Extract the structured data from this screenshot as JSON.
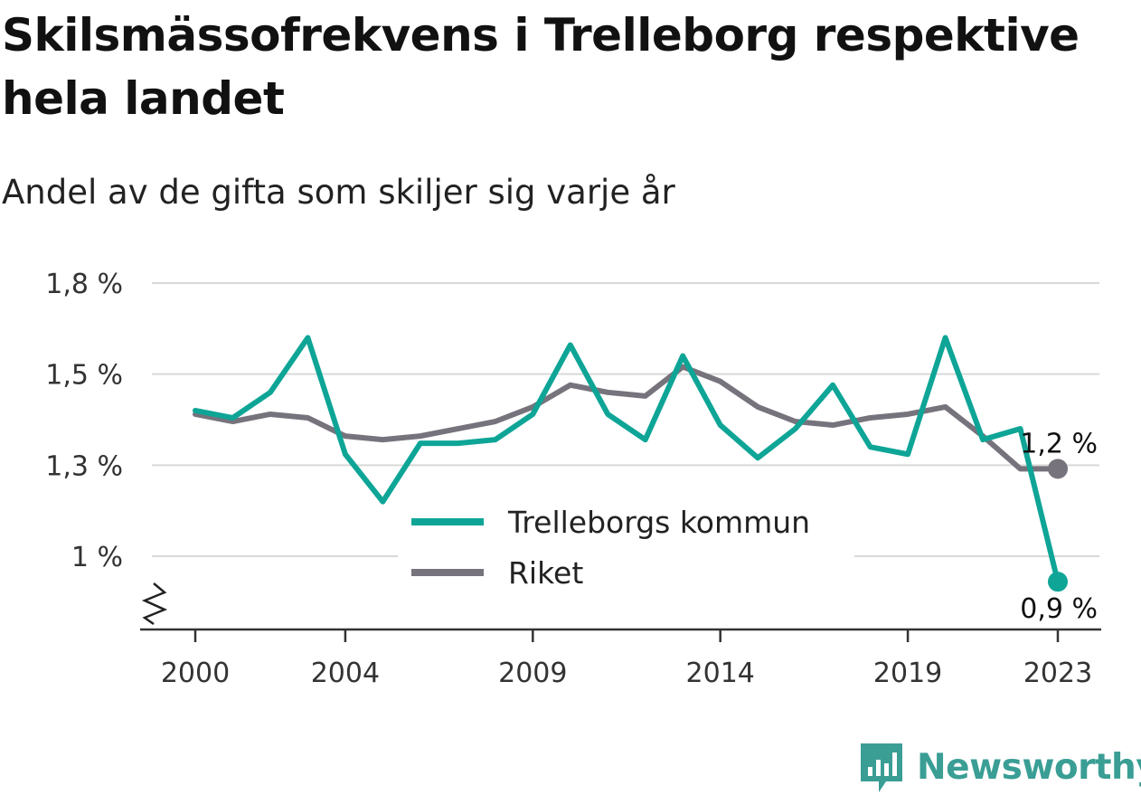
{
  "title": "Skilsmässofrekvens i Trelleborg respektive hela landet",
  "subtitle": "Andel av de gifta som skiljer sig varje år",
  "brand": {
    "name": "Newsworthy",
    "icon": "newsworthy-logo-icon"
  },
  "colors": {
    "trelleborg": "#0ea597",
    "riket": "#76737c",
    "brand": "#3a9e95",
    "grid": "#d9d9d9"
  },
  "chart_data": {
    "type": "line",
    "x": [
      2000,
      2001,
      2002,
      2003,
      2004,
      2005,
      2006,
      2007,
      2008,
      2009,
      2010,
      2011,
      2012,
      2013,
      2014,
      2015,
      2016,
      2017,
      2018,
      2019,
      2020,
      2021,
      2022,
      2023
    ],
    "series": [
      {
        "name": "Trelleborgs kommun",
        "values": [
          1.4,
          1.38,
          1.45,
          1.6,
          1.28,
          1.15,
          1.31,
          1.31,
          1.32,
          1.39,
          1.58,
          1.39,
          1.32,
          1.55,
          1.36,
          1.27,
          1.35,
          1.47,
          1.3,
          1.28,
          1.6,
          1.32,
          1.35,
          0.93
        ]
      },
      {
        "name": "Riket",
        "values": [
          1.39,
          1.37,
          1.39,
          1.38,
          1.33,
          1.32,
          1.33,
          1.35,
          1.37,
          1.41,
          1.47,
          1.45,
          1.44,
          1.52,
          1.48,
          1.41,
          1.37,
          1.36,
          1.38,
          1.39,
          1.41,
          1.33,
          1.24,
          1.24
        ]
      }
    ],
    "y_ticks": [
      {
        "value": 1.0,
        "label": "1 %"
      },
      {
        "value": 1.25,
        "label": "1,3 %"
      },
      {
        "value": 1.5,
        "label": "1,5 %"
      },
      {
        "value": 1.75,
        "label": "1,8 %"
      }
    ],
    "x_ticks": [
      {
        "value": 2000,
        "label": "2000"
      },
      {
        "value": 2004,
        "label": "2004"
      },
      {
        "value": 2009,
        "label": "2009"
      },
      {
        "value": 2014,
        "label": "2014"
      },
      {
        "value": 2019,
        "label": "2019"
      },
      {
        "value": 2023,
        "label": "2023"
      }
    ],
    "end_labels": {
      "riket": "1,2 %",
      "trelleborg": "0,9 %"
    },
    "legend": [
      "Trelleborgs kommun",
      "Riket"
    ],
    "legend_position": "center-bottom",
    "grid": true,
    "y_axis_break": true
  }
}
